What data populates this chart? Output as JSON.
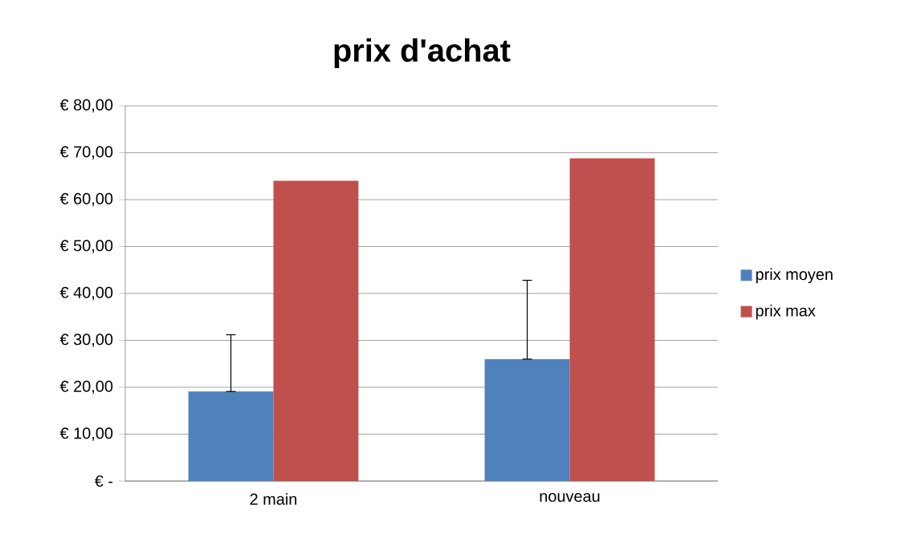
{
  "chart_data": {
    "type": "bar",
    "title": "prix d'achat",
    "categories": [
      "2 main",
      "nouveau"
    ],
    "series": [
      {
        "name": "prix moyen",
        "color": "#4f81bd",
        "values": [
          19.1,
          26.0
        ],
        "errors": [
          [
            19.1,
            31.2
          ],
          [
            26.0,
            42.8
          ]
        ]
      },
      {
        "name": "prix max",
        "color": "#c0504d",
        "values": [
          64.0,
          68.8
        ]
      }
    ],
    "ylim": [
      0,
      80
    ],
    "yticks": [
      {
        "value": 0,
        "label": "€ -"
      },
      {
        "value": 10,
        "label": "€ 10,00"
      },
      {
        "value": 20,
        "label": "€ 20,00"
      },
      {
        "value": 30,
        "label": "€ 30,00"
      },
      {
        "value": 40,
        "label": "€ 40,00"
      },
      {
        "value": 50,
        "label": "€ 50,00"
      },
      {
        "value": 60,
        "label": "€ 60,00"
      },
      {
        "value": 70,
        "label": "€ 70,00"
      },
      {
        "value": 80,
        "label": "€ 80,00"
      }
    ],
    "grid": "y",
    "legend": "right"
  }
}
